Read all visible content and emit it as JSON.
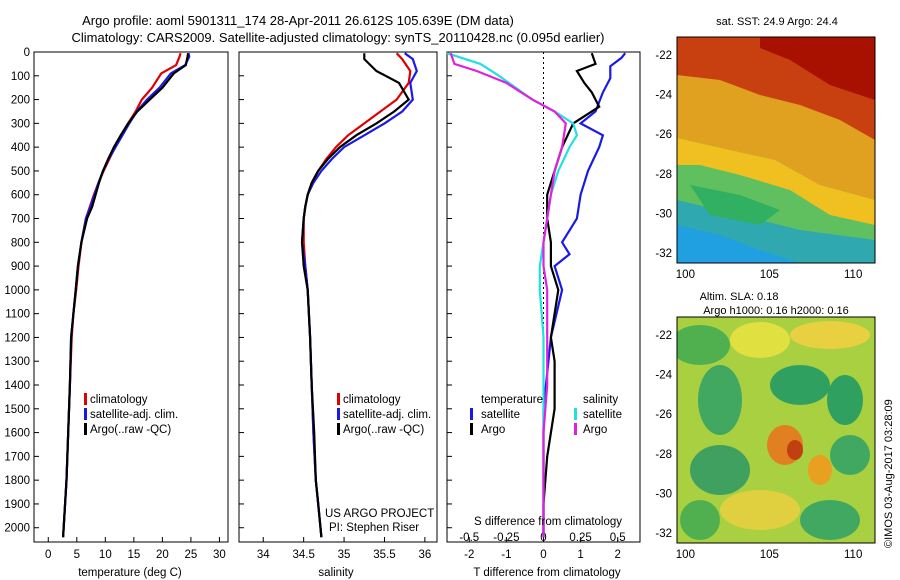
{
  "header": {
    "line1": "Argo profile: aoml 5901311_174 28-Apr-2011 26.612S 105.639E (DM data)",
    "line2": "Climatology: CARS2009. Satellite-adjusted climatology: synTS_20110428.nc (0.095d earlier)"
  },
  "colors": {
    "climatology": "#e00000",
    "satellite": "#1a1ae6",
    "argo": "#000000",
    "sat_s": "#22e0e0",
    "argo_s": "#e020e0"
  },
  "y_axis": {
    "ticks": [
      0,
      100,
      200,
      300,
      400,
      500,
      600,
      700,
      800,
      900,
      1000,
      1100,
      1200,
      1300,
      1400,
      1500,
      1600,
      1700,
      1800,
      1900,
      2000
    ],
    "range": [
      0,
      2060
    ]
  },
  "credits": {
    "project": "US ARGO PROJECT",
    "pi": "PI: Stephen Riser"
  },
  "watermark": "©IMOS 03-Aug-2017 03:28:09",
  "chart_data": [
    {
      "type": "line",
      "id": "temperature",
      "xlabel": "temperature (deg C)",
      "xlim": [
        -2.5,
        31.5
      ],
      "xticks": [
        0,
        5,
        10,
        15,
        20,
        25,
        30
      ],
      "ylim": [
        0,
        2060
      ],
      "legend": [
        "climatology",
        "satellite-adj. clim.",
        "Argo(..raw -QC)"
      ],
      "series": [
        {
          "name": "climatology",
          "key": "climatology",
          "x": [
            23.2,
            23.0,
            22.4,
            19.8,
            18.2,
            16.4,
            15.3,
            14.0,
            12.8,
            11.7,
            10.7,
            9.7,
            8.8,
            8.0,
            7.3,
            6.6,
            5.8,
            5.3,
            4.9,
            4.4,
            4.1,
            3.8,
            3.5,
            3.2,
            2.6
          ],
          "y": [
            5,
            20,
            55,
            90,
            150,
            200,
            250,
            300,
            350,
            400,
            450,
            500,
            550,
            600,
            650,
            700,
            800,
            900,
            1000,
            1100,
            1200,
            1400,
            1600,
            1800,
            2040
          ]
        },
        {
          "name": "satellite-adj. clim.",
          "key": "satellite",
          "x": [
            24.6,
            24.7,
            24.0,
            21.5,
            19.5,
            17.3,
            15.5,
            14.2,
            13.0,
            11.8,
            10.6,
            9.6,
            8.8,
            8.1,
            7.4,
            6.6,
            5.8,
            5.2,
            4.8,
            4.4,
            4.0,
            3.8,
            3.5,
            3.2,
            2.6
          ],
          "y": [
            5,
            20,
            55,
            90,
            150,
            200,
            250,
            300,
            350,
            400,
            450,
            500,
            550,
            600,
            650,
            700,
            800,
            900,
            1000,
            1100,
            1200,
            1400,
            1600,
            1800,
            2040
          ]
        },
        {
          "name": "Argo(..raw -QC)",
          "key": "argo",
          "x": [
            24.5,
            24.4,
            24.1,
            22.0,
            20.0,
            17.8,
            15.6,
            14.0,
            12.7,
            11.5,
            10.5,
            9.6,
            8.9,
            8.3,
            7.7,
            6.8,
            5.8,
            5.2,
            4.8,
            4.4,
            4.0,
            3.8,
            3.5,
            3.2,
            2.6
          ],
          "y": [
            5,
            20,
            55,
            90,
            150,
            200,
            250,
            300,
            350,
            400,
            450,
            500,
            550,
            600,
            650,
            700,
            800,
            900,
            1000,
            1100,
            1200,
            1400,
            1600,
            1800,
            2040
          ]
        }
      ]
    },
    {
      "type": "line",
      "id": "salinity",
      "xlabel": "salinity",
      "xlim": [
        33.7,
        36.15
      ],
      "xticks": [
        34,
        34.5,
        35,
        35.5,
        36
      ],
      "ylim": [
        0,
        2060
      ],
      "legend": [
        "climatology",
        "satellite-adj. clim.",
        "Argo(..raw -QC)"
      ],
      "series": [
        {
          "name": "climatology",
          "key": "climatology",
          "x": [
            35.65,
            35.72,
            35.82,
            35.8,
            35.65,
            35.45,
            35.25,
            35.05,
            34.9,
            34.78,
            34.68,
            34.6,
            34.55,
            34.52,
            34.5,
            34.5,
            34.52,
            34.55,
            34.58,
            34.6,
            34.62,
            34.65,
            34.68,
            34.72
          ],
          "y": [
            5,
            30,
            80,
            130,
            200,
            250,
            300,
            350,
            400,
            450,
            500,
            550,
            600,
            650,
            700,
            800,
            900,
            1000,
            1200,
            1400,
            1600,
            1800,
            1900,
            2040
          ]
        },
        {
          "name": "satellite-adj. clim.",
          "key": "satellite",
          "x": [
            35.75,
            35.85,
            35.9,
            35.82,
            35.85,
            35.72,
            35.5,
            35.25,
            35.0,
            34.85,
            34.72,
            34.62,
            34.55,
            34.52,
            34.5,
            34.48,
            34.52,
            34.55,
            34.58,
            34.6,
            34.62,
            34.65,
            34.68,
            34.72
          ],
          "y": [
            5,
            30,
            80,
            130,
            200,
            250,
            300,
            350,
            400,
            450,
            500,
            550,
            600,
            650,
            700,
            800,
            900,
            1000,
            1200,
            1400,
            1600,
            1800,
            1900,
            2040
          ]
        },
        {
          "name": "Argo(..raw -QC)",
          "key": "argo",
          "x": [
            35.25,
            35.25,
            35.4,
            35.68,
            35.8,
            35.62,
            35.4,
            35.15,
            34.95,
            34.8,
            34.68,
            34.6,
            34.55,
            34.52,
            34.5,
            34.48,
            34.5,
            34.55,
            34.58,
            34.6,
            34.63,
            34.65,
            34.68,
            34.72
          ],
          "y": [
            5,
            30,
            80,
            130,
            200,
            250,
            300,
            350,
            400,
            450,
            500,
            550,
            600,
            650,
            700,
            800,
            900,
            1000,
            1200,
            1400,
            1600,
            1800,
            1900,
            2040
          ]
        }
      ]
    },
    {
      "type": "line",
      "id": "differences",
      "xlabel": "T difference from climatology",
      "xlabel2": "S difference from climatology",
      "xlim": [
        -2.6,
        2.6
      ],
      "xticks_T": [
        -2,
        -1,
        0,
        1,
        2
      ],
      "xticks_S": [
        -0.5,
        -0.25,
        0,
        0.25,
        0.5
      ],
      "ylim": [
        0,
        2060
      ],
      "legend_headers": [
        "temperature",
        "salinity"
      ],
      "legend": [
        "satellite",
        "Argo",
        "satellite",
        "Argo"
      ],
      "series": [
        {
          "name": "satellite",
          "key": "satellite",
          "x": [
            2.2,
            2.1,
            1.8,
            1.8,
            1.6,
            1.4,
            1.0,
            1.6,
            1.5,
            1.2,
            1.0,
            0.9,
            0.7,
            0.5,
            0.7,
            0.3,
            0.5,
            0.2,
            0.0,
            0.0,
            0.0
          ],
          "y": [
            5,
            25,
            60,
            110,
            170,
            250,
            300,
            350,
            400,
            500,
            600,
            700,
            750,
            800,
            850,
            900,
            1000,
            1200,
            1500,
            1800,
            2040
          ]
        },
        {
          "name": "Argo",
          "key": "argo",
          "x": [
            1.3,
            1.4,
            0.9,
            1.1,
            1.3,
            1.5,
            0.8,
            0.5,
            0.3,
            0.1,
            0.1,
            0.2,
            0.2,
            0.4,
            0.2,
            0.3,
            0.3,
            0.1,
            0.0,
            0.0
          ],
          "y": [
            5,
            50,
            80,
            130,
            170,
            230,
            300,
            400,
            500,
            600,
            700,
            800,
            900,
            1000,
            1200,
            1300,
            1500,
            1700,
            1900,
            2040
          ]
        },
        {
          "name": "satellite",
          "key": "sat_s",
          "x": [
            -2.6,
            -1.7,
            -1.2,
            -0.3,
            0.3,
            0.8,
            0.9,
            0.7,
            0.4,
            0.2,
            0.1,
            0.0,
            -0.1,
            -0.1,
            0.0,
            0.0,
            0.0,
            0.0,
            0.0
          ],
          "y": [
            5,
            50,
            100,
            200,
            250,
            300,
            350,
            400,
            500,
            600,
            700,
            800,
            900,
            1000,
            1200,
            1400,
            1600,
            1800,
            2040
          ]
        },
        {
          "name": "Argo",
          "key": "argo_s",
          "x": [
            -2.5,
            -2.4,
            -1.8,
            -1.0,
            -0.3,
            0.3,
            0.6,
            0.5,
            0.3,
            0.2,
            0.1,
            0.0,
            0.0,
            0.1,
            0.1,
            0.1,
            0.0,
            0.0,
            0.0
          ],
          "y": [
            5,
            50,
            80,
            130,
            200,
            250,
            300,
            400,
            500,
            600,
            700,
            800,
            900,
            1000,
            1200,
            1400,
            1600,
            1800,
            2040
          ]
        }
      ]
    },
    {
      "type": "heatmap",
      "id": "sst_map",
      "title": "sat. SST: 24.9 Argo: 24.4",
      "xticks": [
        100,
        105,
        110
      ],
      "yticks": [
        -22,
        -24,
        -26,
        -28,
        -30,
        -32
      ],
      "xlim": [
        99.5,
        111.3
      ],
      "ylim": [
        -32.5,
        -21.1
      ],
      "marker": {
        "lon": 105.64,
        "lat": -26.61
      }
    },
    {
      "type": "heatmap",
      "id": "sla_map",
      "title": "Altim. SLA: 0.18",
      "subtitle": "Argo h1000: 0.16 h2000: 0.16",
      "xticks": [
        100,
        105,
        110
      ],
      "yticks": [
        -22,
        -24,
        -26,
        -28,
        -30,
        -32
      ],
      "xlim": [
        99.5,
        111.3
      ],
      "ylim": [
        -32.5,
        -21.1
      ],
      "marker": {
        "lon": 105.64,
        "lat": -26.61
      }
    }
  ]
}
